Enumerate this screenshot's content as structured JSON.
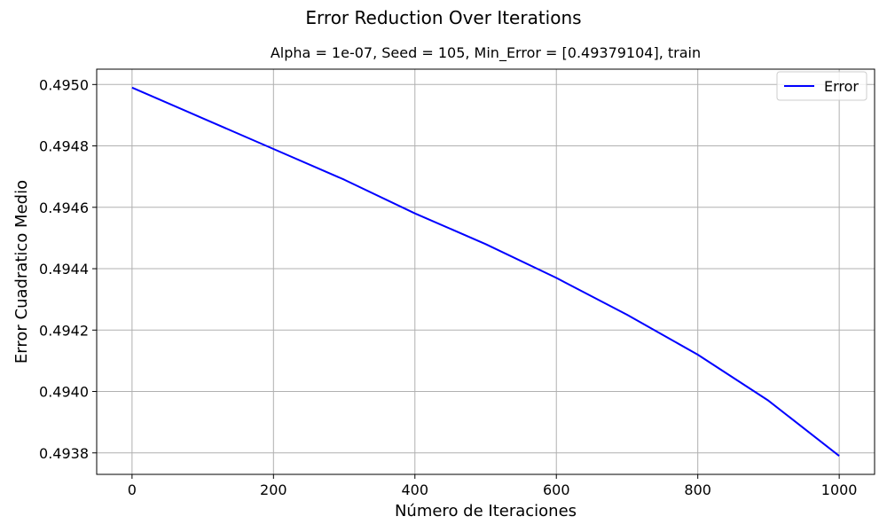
{
  "figure_title": "Error Reduction Over Iterations",
  "chart_data": {
    "type": "line",
    "title": "Alpha = 1e-07, Seed = 105, Min_Error = [0.49379104], train",
    "xlabel": "Número de Iteraciones",
    "ylabel": "Error Cuadratico Medio",
    "xlim": [
      -50,
      1050
    ],
    "ylim": [
      0.49373,
      0.49505
    ],
    "x_ticks": [
      0,
      200,
      400,
      600,
      800,
      1000
    ],
    "x_tick_labels": [
      "0",
      "200",
      "400",
      "600",
      "800",
      "1000"
    ],
    "y_ticks": [
      0.4938,
      0.494,
      0.4942,
      0.4944,
      0.4946,
      0.4948,
      0.495
    ],
    "y_tick_labels": [
      "0.4938",
      "0.4940",
      "0.4942",
      "0.4944",
      "0.4946",
      "0.4948",
      "0.4950"
    ],
    "grid": true,
    "legend_position": "upper right",
    "series": [
      {
        "name": "Error",
        "color": "#0000ff",
        "x": [
          0,
          100,
          200,
          300,
          400,
          500,
          600,
          700,
          800,
          900,
          1000
        ],
        "y": [
          0.49499,
          0.49489,
          0.49479,
          0.49469,
          0.49458,
          0.49448,
          0.49437,
          0.49425,
          0.49412,
          0.49397,
          0.49379
        ]
      }
    ]
  }
}
